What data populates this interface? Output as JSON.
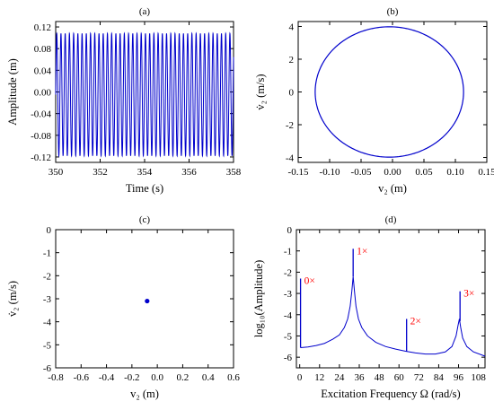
{
  "chart_data": [
    {
      "panel": "(a)",
      "type": "line",
      "title": "(a)",
      "xlabel": "Time (s)",
      "ylabel": "Amplitude (m)",
      "xlim": [
        350,
        358
      ],
      "ylim": [
        -0.13,
        0.13
      ],
      "xticks": [
        "350",
        "352",
        "354",
        "356",
        "358"
      ],
      "yticks": [
        "-0.12",
        "-0.08",
        "-0.04",
        "0.00",
        "0.04",
        "0.08",
        "0.12"
      ],
      "series": [
        {
          "amplitude": 0.113,
          "offset": -0.005,
          "period_s": 0.19,
          "t_start": 350,
          "t_end": 358,
          "color": "#0000cc"
        }
      ]
    },
    {
      "panel": "(b)",
      "type": "line",
      "title": "(b)",
      "xlabel": "v₂ (m)",
      "ylabel": "v̇₂ (m/s)",
      "xlim": [
        -0.15,
        0.15
      ],
      "ylim": [
        -4.3,
        4.3
      ],
      "xticks": [
        "-0.15",
        "-0.10",
        "-0.05",
        "0.00",
        "0.05",
        "0.10",
        "0.15"
      ],
      "yticks": [
        "-4",
        "-2",
        "0",
        "2",
        "4"
      ],
      "series": [
        {
          "shape": "closed-orbit",
          "center_x": -0.005,
          "center_y": 0.0,
          "radius_x": 0.118,
          "radius_y": 3.98,
          "color": "#0000cc"
        }
      ]
    },
    {
      "panel": "(c)",
      "type": "scatter",
      "title": "(c)",
      "xlabel": "v₂ (m)",
      "ylabel": "v̇₂ (m/s)",
      "xlim": [
        -0.8,
        0.6
      ],
      "ylim": [
        -6,
        0
      ],
      "xticks": [
        "-0.8",
        "-0.6",
        "-0.4",
        "-0.2",
        "0.0",
        "0.2",
        "0.4",
        "0.6"
      ],
      "yticks": [
        "-6",
        "-5",
        "-4",
        "-3",
        "-2",
        "-1",
        "0"
      ],
      "series": [
        {
          "x": [
            -0.08
          ],
          "y": [
            -3.1
          ],
          "color": "#0000cc"
        }
      ]
    },
    {
      "panel": "(d)",
      "type": "line",
      "title": "(d)",
      "xlabel": "Excitation Frequency Ω (rad/s)",
      "ylabel": "log₁₀(Amplitude)",
      "xlim": [
        -2,
        112
      ],
      "ylim": [
        -6.5,
        0
      ],
      "xticks": [
        "0",
        "12",
        "24",
        "36",
        "48",
        "60",
        "72",
        "84",
        "96",
        "108"
      ],
      "yticks": [
        "-6",
        "-5",
        "-4",
        "-3",
        "-2",
        "-1",
        "0"
      ],
      "background_curve": [
        [
          0.5,
          -5.55
        ],
        [
          5,
          -5.52
        ],
        [
          10,
          -5.45
        ],
        [
          15,
          -5.35
        ],
        [
          20,
          -5.15
        ],
        [
          24,
          -4.95
        ],
        [
          27,
          -4.6
        ],
        [
          29,
          -4.2
        ],
        [
          30.5,
          -3.6
        ],
        [
          31.5,
          -2.9
        ],
        [
          32.3,
          -2.2
        ],
        [
          33.1,
          -2.9
        ],
        [
          34,
          -3.6
        ],
        [
          35.5,
          -4.2
        ],
        [
          37.5,
          -4.6
        ],
        [
          41,
          -5.0
        ],
        [
          46,
          -5.3
        ],
        [
          52,
          -5.5
        ],
        [
          58,
          -5.62
        ],
        [
          64,
          -5.72
        ],
        [
          70,
          -5.8
        ],
        [
          76,
          -5.85
        ],
        [
          82,
          -5.85
        ],
        [
          88,
          -5.75
        ],
        [
          92,
          -5.5
        ],
        [
          94.5,
          -5.0
        ],
        [
          95.7,
          -4.5
        ],
        [
          96.5,
          -4.2
        ],
        [
          97.3,
          -4.6
        ],
        [
          98.5,
          -5.1
        ],
        [
          101,
          -5.5
        ],
        [
          105,
          -5.75
        ],
        [
          112,
          -5.95
        ]
      ],
      "peaks": [
        {
          "x": 0.5,
          "base": -5.55,
          "top": -2.3,
          "label": "0×"
        },
        {
          "x": 32.3,
          "base": -2.2,
          "top": -0.9,
          "label": "1×"
        },
        {
          "x": 64.6,
          "base": -5.72,
          "top": -4.2,
          "label": "2×"
        },
        {
          "x": 96.9,
          "base": -4.3,
          "top": -2.9,
          "label": "3×"
        }
      ],
      "color": "#0000cc",
      "annotation_color": "#ff0000"
    }
  ]
}
